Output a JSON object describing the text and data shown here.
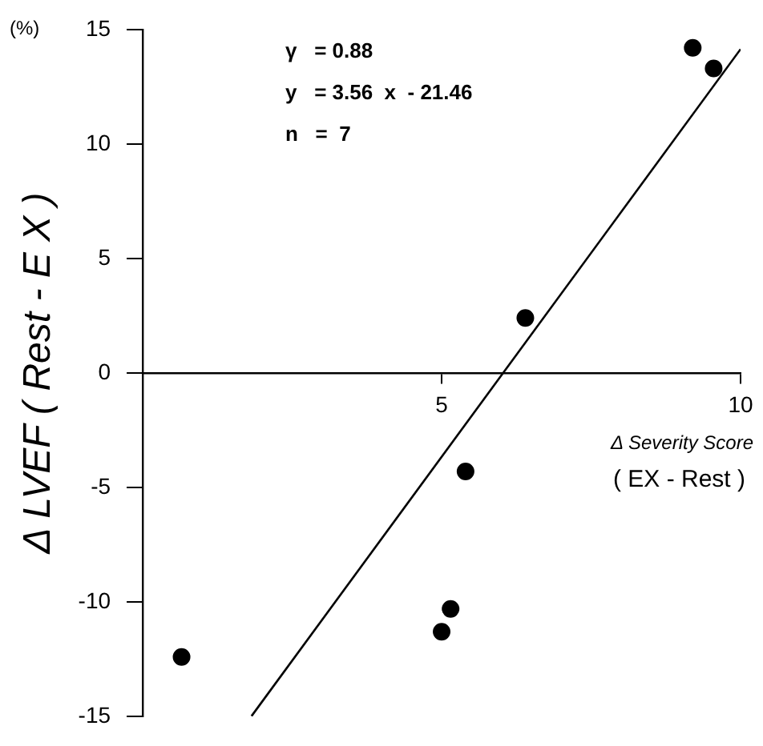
{
  "chart_data": {
    "type": "scatter",
    "xlabel": "Δ Severity Score\n( EX - Rest )",
    "ylabel": "Δ LVEF ( Rest - E X )",
    "annotations": [
      "(%)",
      "γ   = 0.88",
      "y   = 3.56  x  - 21.46",
      "n   =  7"
    ],
    "series": [
      {
        "type": "scatter",
        "marker": "circle",
        "color": "#000000",
        "x": [
          0.65,
          5.0,
          5.15,
          5.4,
          6.4,
          9.2,
          9.55
        ],
        "values": [
          -12.4,
          -11.3,
          -10.3,
          -4.3,
          2.4,
          14.2,
          13.3
        ]
      },
      {
        "type": "line",
        "marker": "none",
        "color": "#000000",
        "x": [
          1.82,
          10.0
        ],
        "values": [
          -14.98,
          14.14
        ]
      }
    ],
    "xlim": [
      0,
      10
    ],
    "xticks": [
      5,
      10
    ],
    "ylim": [
      -15,
      15
    ],
    "yticks": [
      -15,
      -10,
      -5,
      0,
      5,
      10,
      15
    ],
    "grid": false,
    "legend": false,
    "line_style": "solid"
  }
}
